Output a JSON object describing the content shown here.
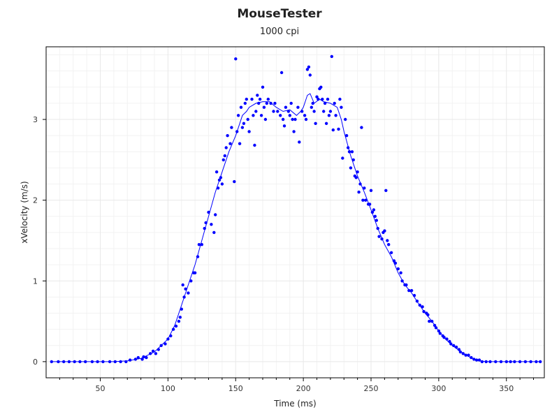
{
  "chart_data": {
    "type": "scatter",
    "title": "MouseTester",
    "subtitle": "1000 cpi",
    "xlabel": "Time (ms)",
    "ylabel": "xVelocity (m/s)",
    "xlim": [
      10,
      378
    ],
    "ylim": [
      -0.2,
      3.9
    ],
    "x_ticks": [
      50,
      100,
      150,
      200,
      250,
      300,
      350
    ],
    "y_ticks": [
      0,
      1,
      2,
      3
    ],
    "grid": true,
    "legend": "none",
    "colors": {
      "series": "#0000ff",
      "grid_major": "#e8e8e8",
      "grid_minor": "#f2f2f2",
      "axis": "#000000"
    },
    "series": [
      {
        "type": "scatter",
        "points": [
          [
            14,
            0
          ],
          [
            19,
            0
          ],
          [
            23,
            0
          ],
          [
            27,
            0
          ],
          [
            31,
            0
          ],
          [
            35,
            0
          ],
          [
            39,
            0
          ],
          [
            44,
            0
          ],
          [
            48,
            0
          ],
          [
            52,
            0
          ],
          [
            57,
            0
          ],
          [
            61,
            0
          ],
          [
            65,
            0
          ],
          [
            69,
            0
          ],
          [
            72,
            0.02
          ],
          [
            76,
            0.03
          ],
          [
            78,
            0.05
          ],
          [
            81,
            0.03
          ],
          [
            82,
            0.06
          ],
          [
            84,
            0.05
          ],
          [
            87,
            0.1
          ],
          [
            89,
            0.13
          ],
          [
            91,
            0.1
          ],
          [
            93,
            0.15
          ],
          [
            95,
            0.2
          ],
          [
            98,
            0.22
          ],
          [
            100,
            0.28
          ],
          [
            102,
            0.32
          ],
          [
            104,
            0.4
          ],
          [
            106,
            0.44
          ],
          [
            108,
            0.5
          ],
          [
            109,
            0.55
          ],
          [
            110,
            0.65
          ],
          [
            111,
            0.95
          ],
          [
            112,
            0.8
          ],
          [
            113,
            0.9
          ],
          [
            115,
            0.85
          ],
          [
            117,
            1.0
          ],
          [
            119,
            1.1
          ],
          [
            120,
            1.1
          ],
          [
            122,
            1.3
          ],
          [
            123,
            1.45
          ],
          [
            125,
            1.45
          ],
          [
            127,
            1.65
          ],
          [
            128,
            1.72
          ],
          [
            130,
            1.85
          ],
          [
            132,
            1.7
          ],
          [
            134,
            1.6
          ],
          [
            135,
            1.82
          ],
          [
            136,
            2.35
          ],
          [
            137,
            2.15
          ],
          [
            138,
            2.25
          ],
          [
            139,
            2.28
          ],
          [
            140,
            2.2
          ],
          [
            141,
            2.5
          ],
          [
            142,
            2.55
          ],
          [
            143,
            2.65
          ],
          [
            144,
            2.8
          ],
          [
            146,
            2.7
          ],
          [
            147,
            2.9
          ],
          [
            149,
            2.23
          ],
          [
            150,
            3.75
          ],
          [
            151,
            2.85
          ],
          [
            152,
            3.05
          ],
          [
            153,
            2.7
          ],
          [
            154,
            3.15
          ],
          [
            155,
            2.9
          ],
          [
            156,
            2.95
          ],
          [
            157,
            3.2
          ],
          [
            158,
            3.25
          ],
          [
            159,
            3.0
          ],
          [
            160,
            2.85
          ],
          [
            162,
            3.25
          ],
          [
            163,
            3.05
          ],
          [
            164,
            2.68
          ],
          [
            165,
            3.1
          ],
          [
            166,
            3.3
          ],
          [
            167,
            3.2
          ],
          [
            168,
            3.25
          ],
          [
            169,
            3.05
          ],
          [
            170,
            3.4
          ],
          [
            171,
            3.15
          ],
          [
            172,
            3.0
          ],
          [
            173,
            3.2
          ],
          [
            174,
            3.25
          ],
          [
            176,
            3.2
          ],
          [
            178,
            3.1
          ],
          [
            179,
            3.2
          ],
          [
            181,
            3.1
          ],
          [
            183,
            3.05
          ],
          [
            184,
            3.58
          ],
          [
            185,
            3.0
          ],
          [
            186,
            2.92
          ],
          [
            187,
            3.15
          ],
          [
            189,
            3.1
          ],
          [
            190,
            3.05
          ],
          [
            191,
            3.2
          ],
          [
            192,
            3.0
          ],
          [
            193,
            2.85
          ],
          [
            194,
            3.0
          ],
          [
            196,
            3.15
          ],
          [
            197,
            2.72
          ],
          [
            199,
            3.1
          ],
          [
            201,
            3.05
          ],
          [
            202,
            3.0
          ],
          [
            203,
            3.62
          ],
          [
            204,
            3.65
          ],
          [
            205,
            3.55
          ],
          [
            206,
            3.15
          ],
          [
            207,
            3.2
          ],
          [
            208,
            3.1
          ],
          [
            209,
            2.95
          ],
          [
            210,
            3.28
          ],
          [
            211,
            3.25
          ],
          [
            212,
            3.38
          ],
          [
            213,
            3.4
          ],
          [
            214,
            3.25
          ],
          [
            215,
            3.1
          ],
          [
            216,
            3.2
          ],
          [
            217,
            2.95
          ],
          [
            218,
            3.25
          ],
          [
            219,
            3.05
          ],
          [
            220,
            3.1
          ],
          [
            221,
            3.78
          ],
          [
            222,
            2.87
          ],
          [
            223,
            3.2
          ],
          [
            224,
            3.05
          ],
          [
            226,
            2.88
          ],
          [
            227,
            3.25
          ],
          [
            228,
            3.15
          ],
          [
            229,
            2.52
          ],
          [
            231,
            3.0
          ],
          [
            232,
            2.8
          ],
          [
            233,
            2.65
          ],
          [
            234,
            2.6
          ],
          [
            235,
            2.4
          ],
          [
            236,
            2.6
          ],
          [
            237,
            2.5
          ],
          [
            238,
            2.3
          ],
          [
            239,
            2.28
          ],
          [
            240,
            2.35
          ],
          [
            241,
            2.1
          ],
          [
            242,
            2.2
          ],
          [
            243,
            2.9
          ],
          [
            244,
            2.0
          ],
          [
            245,
            2.15
          ],
          [
            246,
            2.0
          ],
          [
            248,
            1.95
          ],
          [
            249,
            1.95
          ],
          [
            250,
            2.12
          ],
          [
            251,
            1.85
          ],
          [
            252,
            1.88
          ],
          [
            253,
            1.8
          ],
          [
            254,
            1.75
          ],
          [
            255,
            1.65
          ],
          [
            256,
            1.55
          ],
          [
            258,
            1.52
          ],
          [
            259,
            1.6
          ],
          [
            260,
            1.62
          ],
          [
            261,
            2.12
          ],
          [
            262,
            1.5
          ],
          [
            263,
            1.45
          ],
          [
            265,
            1.35
          ],
          [
            267,
            1.25
          ],
          [
            268,
            1.22
          ],
          [
            270,
            1.15
          ],
          [
            272,
            1.1
          ],
          [
            273,
            1.0
          ],
          [
            275,
            0.95
          ],
          [
            276,
            0.95
          ],
          [
            278,
            0.88
          ],
          [
            280,
            0.88
          ],
          [
            282,
            0.82
          ],
          [
            284,
            0.75
          ],
          [
            286,
            0.7
          ],
          [
            288,
            0.68
          ],
          [
            289,
            0.62
          ],
          [
            291,
            0.6
          ],
          [
            292,
            0.58
          ],
          [
            293,
            0.5
          ],
          [
            295,
            0.5
          ],
          [
            297,
            0.45
          ],
          [
            298,
            0.42
          ],
          [
            300,
            0.38
          ],
          [
            301,
            0.35
          ],
          [
            303,
            0.32
          ],
          [
            304,
            0.3
          ],
          [
            306,
            0.28
          ],
          [
            308,
            0.25
          ],
          [
            309,
            0.22
          ],
          [
            311,
            0.2
          ],
          [
            313,
            0.18
          ],
          [
            315,
            0.15
          ],
          [
            316,
            0.12
          ],
          [
            318,
            0.1
          ],
          [
            320,
            0.08
          ],
          [
            322,
            0.08
          ],
          [
            324,
            0.05
          ],
          [
            326,
            0.03
          ],
          [
            328,
            0.02
          ],
          [
            330,
            0.02
          ],
          [
            332,
            0
          ],
          [
            335,
            0
          ],
          [
            338,
            0
          ],
          [
            342,
            0
          ],
          [
            346,
            0
          ],
          [
            350,
            0
          ],
          [
            353,
            0
          ],
          [
            356,
            0
          ],
          [
            360,
            0
          ],
          [
            364,
            0
          ],
          [
            368,
            0
          ],
          [
            372,
            0
          ],
          [
            375,
            0
          ]
        ]
      },
      {
        "type": "line",
        "points": [
          [
            14,
            0
          ],
          [
            60,
            0
          ],
          [
            70,
            0.01
          ],
          [
            80,
            0.04
          ],
          [
            90,
            0.12
          ],
          [
            95,
            0.2
          ],
          [
            100,
            0.28
          ],
          [
            105,
            0.45
          ],
          [
            110,
            0.7
          ],
          [
            115,
            0.95
          ],
          [
            120,
            1.2
          ],
          [
            125,
            1.5
          ],
          [
            130,
            1.8
          ],
          [
            135,
            2.1
          ],
          [
            140,
            2.35
          ],
          [
            145,
            2.6
          ],
          [
            150,
            2.8
          ],
          [
            153,
            2.95
          ],
          [
            155,
            3.05
          ],
          [
            158,
            3.1
          ],
          [
            160,
            3.15
          ],
          [
            165,
            3.2
          ],
          [
            170,
            3.22
          ],
          [
            175,
            3.22
          ],
          [
            180,
            3.15
          ],
          [
            185,
            3.1
          ],
          [
            190,
            3.12
          ],
          [
            195,
            3.05
          ],
          [
            198,
            3.1
          ],
          [
            200,
            3.15
          ],
          [
            203,
            3.3
          ],
          [
            205,
            3.32
          ],
          [
            208,
            3.2
          ],
          [
            212,
            3.25
          ],
          [
            215,
            3.22
          ],
          [
            220,
            3.2
          ],
          [
            225,
            3.15
          ],
          [
            228,
            3.0
          ],
          [
            230,
            2.85
          ],
          [
            235,
            2.55
          ],
          [
            240,
            2.3
          ],
          [
            245,
            2.1
          ],
          [
            250,
            1.88
          ],
          [
            255,
            1.65
          ],
          [
            260,
            1.45
          ],
          [
            265,
            1.3
          ],
          [
            270,
            1.1
          ],
          [
            275,
            0.95
          ],
          [
            280,
            0.85
          ],
          [
            285,
            0.72
          ],
          [
            290,
            0.6
          ],
          [
            295,
            0.5
          ],
          [
            300,
            0.38
          ],
          [
            305,
            0.28
          ],
          [
            310,
            0.2
          ],
          [
            315,
            0.14
          ],
          [
            320,
            0.08
          ],
          [
            325,
            0.04
          ],
          [
            330,
            0.01
          ],
          [
            335,
            0
          ],
          [
            375,
            0
          ]
        ]
      }
    ]
  }
}
